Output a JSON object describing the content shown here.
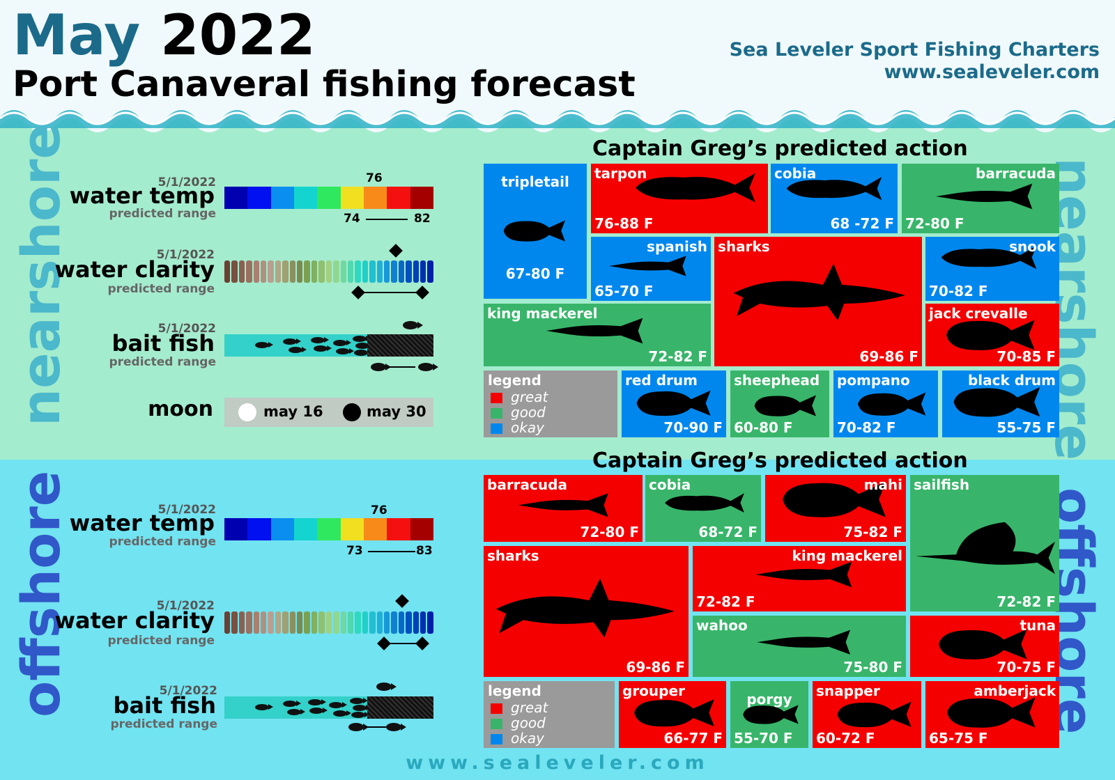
{
  "header": {
    "month": "May",
    "year": "2022",
    "subtitle": "Port Canaveral fishing forecast",
    "company": "Sea Leveler Sport Fishing Charters",
    "website": "www.sealeveler.com"
  },
  "footer": "www.sealeveler.com",
  "colors": {
    "great": "#f50000",
    "good": "#38b56a",
    "okay": "#0087ee",
    "nearshore_bg": "#a4ecce",
    "offshore_bg": "#72e3f1",
    "title_blue": "#1b6a8a"
  },
  "scale_colors": {
    "temp": [
      "#0000b0",
      "#0010f0",
      "#0a8ff0",
      "#14d4d0",
      "#30e860",
      "#f0e020",
      "#f88a1a",
      "#f51010",
      "#a50000"
    ],
    "clarity": [
      "#6b4030",
      "#7a5040",
      "#8a6050",
      "#9a7060",
      "#a88070",
      "#b09080",
      "#b8a090",
      "#b0a688",
      "#a0a070",
      "#8a9060",
      "#7a8a50",
      "#7aa050",
      "#80b060",
      "#90c070",
      "#a0d080",
      "#90d890",
      "#70d8a0",
      "#50d8b0",
      "#30d8c0",
      "#20d0c8",
      "#20c0d0",
      "#20b0d8",
      "#1898d8",
      "#1080d0",
      "#0868c8",
      "#0050c0",
      "#0040b8",
      "#0030b0",
      "#0020a8"
    ]
  },
  "nearshore": {
    "side_label": "nearshore",
    "water_temp": {
      "date": "5/1/2022",
      "label": "water temp",
      "range_label": "predicted range",
      "current": "76",
      "low": "74",
      "high": "82",
      "current_value": 76,
      "low_value": 74,
      "high_value": 82
    },
    "water_clarity": {
      "date": "5/1/2022",
      "label": "water clarity",
      "range_label": "predicted range",
      "current_fraction": 0.81,
      "low_fraction": 0.62,
      "high_fraction": 0.93
    },
    "bait_fish": {
      "date": "5/1/2022",
      "label": "bait fish",
      "range_label": "predicted range",
      "current_fraction": 0.87,
      "low_fraction": 0.72,
      "high_fraction": 0.95
    },
    "moon": {
      "label": "moon",
      "full": "may 16",
      "new": "may 30"
    },
    "panel_title": "Captain Greg’s predicted action",
    "species": [
      {
        "name": "tripletail",
        "range": "67-80 F",
        "rating": "okay",
        "icon": "tripletail-icon"
      },
      {
        "name": "tarpon",
        "range": "76-88 F",
        "rating": "great",
        "icon": "tarpon-icon"
      },
      {
        "name": "cobia",
        "range": "68 -72 F",
        "rating": "okay",
        "icon": "cobia-icon"
      },
      {
        "name": "barracuda",
        "range": "72-80 F",
        "rating": "good",
        "icon": "barracuda-icon"
      },
      {
        "name": "spanish",
        "range": "65-70 F",
        "rating": "okay",
        "icon": "spanish-mackerel-icon"
      },
      {
        "name": "sharks",
        "range": "69-86 F",
        "rating": "great",
        "icon": "shark-icon"
      },
      {
        "name": "snook",
        "range": "70-82 F",
        "rating": "okay",
        "icon": "snook-icon"
      },
      {
        "name": "king mackerel",
        "range": "72-82 F",
        "rating": "good",
        "icon": "king-mackerel-icon"
      },
      {
        "name": "jack crevalle",
        "range": "70-85 F",
        "rating": "great",
        "icon": "jack-crevalle-icon"
      },
      {
        "name": "red drum",
        "range": "70-90 F",
        "rating": "okay",
        "icon": "red-drum-icon"
      },
      {
        "name": "sheephead",
        "range": "60-80 F",
        "rating": "good",
        "icon": "sheephead-icon"
      },
      {
        "name": "pompano",
        "range": "70-82 F",
        "rating": "okay",
        "icon": "pompano-icon"
      },
      {
        "name": "black drum",
        "range": "55-75 F",
        "rating": "okay",
        "icon": "black-drum-icon"
      }
    ],
    "legend": {
      "title": "legend",
      "great": "great",
      "good": "good",
      "okay": "okay"
    }
  },
  "offshore": {
    "side_label": "offshore",
    "water_temp": {
      "date": "5/1/2022",
      "label": "water temp",
      "range_label": "predicted range",
      "current": "76",
      "low": "73",
      "high": "83",
      "current_value": 76,
      "low_value": 73,
      "high_value": 83
    },
    "water_clarity": {
      "date": "5/1/2022",
      "label": "water clarity",
      "range_label": "predicted range",
      "current_fraction": 0.84,
      "low_fraction": 0.75,
      "high_fraction": 0.93
    },
    "bait_fish": {
      "date": "5/1/2022",
      "label": "bait fish",
      "range_label": "predicted range",
      "current_fraction": 0.76,
      "low_fraction": 0.62,
      "high_fraction": 0.7
    },
    "panel_title": "Captain Greg’s predicted action",
    "species": [
      {
        "name": "barracuda",
        "range": "72-80 F",
        "rating": "great",
        "icon": "barracuda-icon"
      },
      {
        "name": "cobia",
        "range": "68-72 F",
        "rating": "good",
        "icon": "cobia-icon"
      },
      {
        "name": "mahi",
        "range": "75-82 F",
        "rating": "great",
        "icon": "mahi-icon"
      },
      {
        "name": "sailfish",
        "range": "72-82 F",
        "rating": "good",
        "icon": "sailfish-icon"
      },
      {
        "name": "sharks",
        "range": "69-86 F",
        "rating": "great",
        "icon": "shark-icon"
      },
      {
        "name": "king mackerel",
        "range": "72-82 F",
        "rating": "great",
        "icon": "king-mackerel-icon"
      },
      {
        "name": "wahoo",
        "range": "75-80 F",
        "rating": "good",
        "icon": "wahoo-icon"
      },
      {
        "name": "tuna",
        "range": "70-75 F",
        "rating": "great",
        "icon": "tuna-icon"
      },
      {
        "name": "grouper",
        "range": "66-77 F",
        "rating": "great",
        "icon": "grouper-icon"
      },
      {
        "name": "porgy",
        "range": "55-70 F",
        "rating": "good",
        "icon": "porgy-icon"
      },
      {
        "name": "snapper",
        "range": "60-72 F",
        "rating": "great",
        "icon": "snapper-icon"
      },
      {
        "name": "amberjack",
        "range": "65-75 F",
        "rating": "great",
        "icon": "amberjack-icon"
      }
    ],
    "legend": {
      "title": "legend",
      "great": "great",
      "good": "good",
      "okay": "okay"
    }
  }
}
